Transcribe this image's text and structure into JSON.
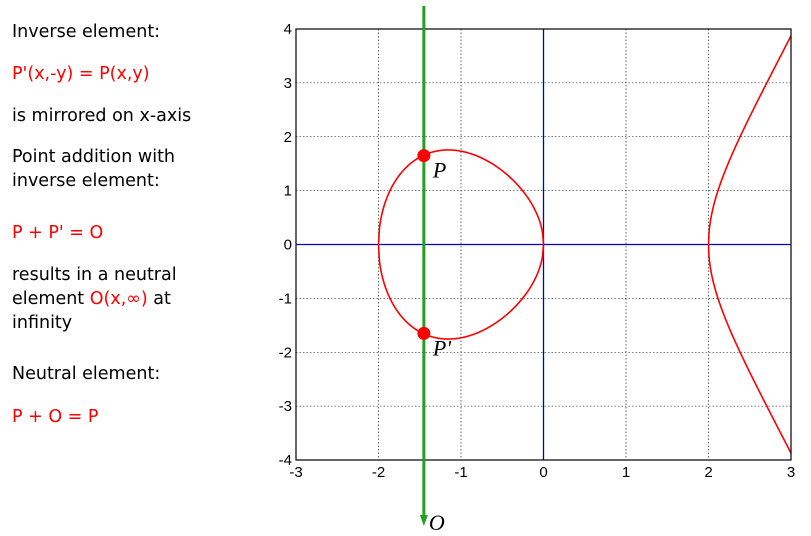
{
  "text": {
    "inverse_heading": "Inverse element:",
    "inverse_formula": "P'(x,-y) = P(x,y)",
    "mirrored": "is mirrored on x-axis",
    "addition_line1": "Point addition with",
    "addition_line2": "inverse element:",
    "addition_formula": "P + P' = O",
    "neutral_line1": "results in a neutral",
    "neutral_line2_prefix": "element ",
    "neutral_line2_symbol": "O(x,∞)",
    "neutral_line2_suffix": " at",
    "neutral_line3": "infinity",
    "neutral_heading": "Neutral element:",
    "neutral_formula": "P + O = P"
  },
  "colors": {
    "curve": "#ff0000",
    "axes": "#0000cc",
    "vertical_line": "#22a022",
    "points": "#ff0000",
    "grid": "#000000",
    "highlight_text": "#ff0000"
  },
  "chart_data": {
    "type": "line",
    "equation": "y^2 = x^3 - 4x",
    "xlim": [
      -3,
      3
    ],
    "ylim": [
      -4,
      4
    ],
    "x_ticks": [
      "-3",
      "-2",
      "-1",
      "0",
      "1",
      "2",
      "3"
    ],
    "y_ticks": [
      "4",
      "3",
      "2",
      "1",
      "0",
      "-1",
      "-2",
      "-3",
      "-4"
    ],
    "grid": true,
    "vertical_line_x": -1.45,
    "points": [
      {
        "label": "P",
        "x": -1.45,
        "y": 1.65
      },
      {
        "label": "P'",
        "x": -1.45,
        "y": -1.65
      }
    ],
    "arrow_label": "O"
  }
}
